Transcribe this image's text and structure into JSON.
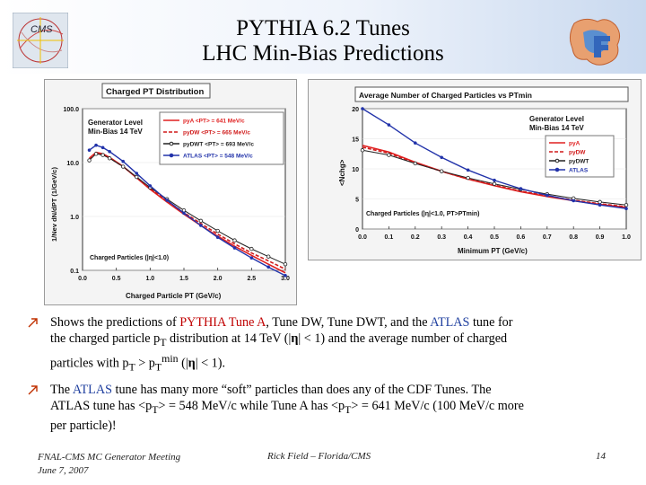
{
  "title": {
    "line1": "PYTHIA 6.2 Tunes",
    "line2": "LHC Min-Bias Predictions"
  },
  "logos": {
    "left": "CMS",
    "right": ""
  },
  "colors": {
    "tuneA": "#e02020",
    "dw": "#d01a1a",
    "dwt": "#222222",
    "atlas": "#2233aa",
    "accent_red": "#c00000",
    "accent_blue": "#1f3f9f"
  },
  "left_plot": {
    "title": "Charged PT Distribution",
    "label_lines": [
      "Generator Level",
      "Min-Bias 14 TeV"
    ],
    "legend": [
      "pyA <PT> = 641 MeV/c",
      "pyDW <PT> = 665 MeV/c",
      "pyDWT <PT> = 693 MeV/c",
      "ATLAS <PT> = 548 MeV/c"
    ],
    "annotation": "Charged Particles (|η|<1.0)",
    "xlabel": "Charged Particle PT (GeV/c)",
    "ylabel": "1/Nev dN/dPT (1/GeV/c)",
    "yticks": [
      "100.0",
      "10.0",
      "1.0",
      "0.1"
    ],
    "xticks": [
      "0.0",
      "0.5",
      "1.0",
      "1.5",
      "2.0",
      "2.5",
      "3.0"
    ]
  },
  "right_plot": {
    "title": "Average Number of Charged Particles vs PTmin",
    "label_lines": [
      "Generator Level",
      "Min-Bias 14 TeV"
    ],
    "legend": [
      "pyA",
      "pyDW",
      "pyDWT",
      "ATLAS"
    ],
    "annotation": "Charged Particles (|η|<1.0, PT>PTmin)",
    "xlabel": "Minimum PT (GeV/c)",
    "ylabel": "<Nchg>",
    "yticks": [
      "20",
      "15",
      "10",
      "5",
      "0"
    ],
    "xticks": [
      "0.0",
      "0.1",
      "0.2",
      "0.3",
      "0.4",
      "0.5",
      "0.6",
      "0.7",
      "0.8",
      "0.9",
      "1.0"
    ]
  },
  "chart_data": [
    {
      "type": "line",
      "title": "Charged PT Distribution",
      "xlabel": "Charged Particle PT (GeV/c)",
      "ylabel": "1/Nev dN/dPT (1/GeV/c)",
      "xlim": [
        0,
        3
      ],
      "ylim": [
        0.1,
        100
      ],
      "yscale": "log",
      "legend_position": "top-right",
      "x": [
        0.1,
        0.2,
        0.3,
        0.4,
        0.6,
        0.8,
        1.0,
        1.25,
        1.5,
        1.75,
        2.0,
        2.25,
        2.5,
        2.75,
        3.0
      ],
      "series": [
        {
          "name": "pyA <PT> = 641 MeV/c",
          "values": [
            12,
            15.5,
            14.5,
            12.5,
            8.5,
            5.2,
            3.2,
            1.85,
            1.1,
            0.68,
            0.43,
            0.28,
            0.19,
            0.13,
            0.09
          ]
        },
        {
          "name": "pyDW <PT> = 665 MeV/c",
          "values": [
            11.5,
            15,
            14,
            12.2,
            8.4,
            5.3,
            3.3,
            1.95,
            1.18,
            0.74,
            0.47,
            0.31,
            0.21,
            0.15,
            0.105
          ]
        },
        {
          "name": "pyDWT <PT> = 693 MeV/c",
          "values": [
            11,
            14.5,
            13.8,
            12,
            8.4,
            5.4,
            3.45,
            2.1,
            1.3,
            0.83,
            0.54,
            0.36,
            0.25,
            0.18,
            0.13
          ]
        },
        {
          "name": "ATLAS <PT> = 548 MeV/c",
          "values": [
            17,
            21,
            19,
            16,
            10.5,
            6.3,
            3.7,
            2.0,
            1.15,
            0.68,
            0.41,
            0.26,
            0.17,
            0.115,
            0.08
          ]
        }
      ]
    },
    {
      "type": "line",
      "title": "Average Number of Charged Particles vs PTmin",
      "xlabel": "Minimum PT (GeV/c)",
      "ylabel": "<Nchg>",
      "xlim": [
        0,
        1
      ],
      "ylim": [
        0,
        20
      ],
      "legend_position": "top-right",
      "x": [
        0.0,
        0.1,
        0.2,
        0.3,
        0.4,
        0.5,
        0.6,
        0.7,
        0.8,
        0.9,
        1.0
      ],
      "series": [
        {
          "name": "pyA",
          "values": [
            13.9,
            12.8,
            11.1,
            9.6,
            8.3,
            7.2,
            6.2,
            5.4,
            4.7,
            4.1,
            3.6
          ]
        },
        {
          "name": "pyDW",
          "values": [
            13.6,
            12.6,
            11.0,
            9.6,
            8.3,
            7.3,
            6.3,
            5.5,
            4.8,
            4.2,
            3.7
          ]
        },
        {
          "name": "pyDWT",
          "values": [
            13.1,
            12.3,
            10.9,
            9.6,
            8.5,
            7.5,
            6.6,
            5.8,
            5.1,
            4.5,
            4.0
          ]
        },
        {
          "name": "ATLAS",
          "values": [
            20.0,
            17.3,
            14.3,
            11.9,
            9.8,
            8.1,
            6.7,
            5.6,
            4.7,
            4.0,
            3.4
          ]
        }
      ]
    }
  ],
  "bullet1": {
    "p1": "Shows the predictions of ",
    "p2": "PYTHIA Tune A",
    "p3": ", Tune DW, Tune DWT, and the ",
    "p4": "ATLAS",
    "p5": " tune for",
    "line2a": "the charged particle p",
    "line2sub": "T",
    "line2b": " distribution at 14 TeV (|",
    "eta": "η",
    "line2c": "| < 1) and the average number of charged",
    "line3a": "particles with p",
    "line3sub1": "T",
    "line3b": " > p",
    "line3sub2": "T",
    "line3sup": "min",
    "line3c": " (|",
    "line3d": "| < 1)."
  },
  "bullet2": {
    "p1": "The ",
    "p2": "ATLAS",
    "p3": " tune has many more “soft” particles than does any of the CDF Tunes. The",
    "line2a": "ATLAS tune has <p",
    "sub1": "T",
    "line2b": "> = 548 MeV/c while Tune A has <p",
    "sub2": "T",
    "line2c": "> = 641 MeV/c (100 MeV/c more",
    "line3": "per particle)!"
  },
  "footer": {
    "left_line1": "FNAL-CMS MC Generator Meeting",
    "left_line2": "June 7, 2007",
    "middle": "Rick Field – Florida/CMS",
    "page": "14"
  }
}
